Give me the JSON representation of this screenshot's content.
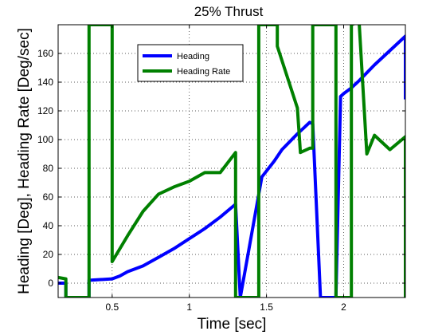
{
  "chart_data": {
    "type": "line",
    "title": "25% Thrust",
    "xlabel": "Time [sec]",
    "ylabel": "Heading [Deg], Heading Rate [Deg/sec]",
    "xlim": [
      0.15,
      2.4
    ],
    "ylim": [
      -10,
      180
    ],
    "xticks": [
      0.5,
      1,
      1.5,
      2
    ],
    "xtick_labels": [
      "0.5",
      "1",
      "1.5",
      "2"
    ],
    "yticks": [
      0,
      20,
      40,
      60,
      80,
      100,
      120,
      140,
      160
    ],
    "ytick_labels": [
      "0",
      "20",
      "40",
      "60",
      "80",
      "100",
      "120",
      "140",
      "160"
    ],
    "grid": true,
    "legend": "upper-center",
    "series": [
      {
        "name": "Heading",
        "color": "#0000ff",
        "x": [
          0.15,
          0.2,
          0.2,
          0.35,
          0.35,
          0.35,
          0.5,
          0.55,
          0.6,
          0.7,
          0.8,
          0.9,
          1.0,
          1.1,
          1.2,
          1.3,
          1.33,
          1.47,
          1.55,
          1.6,
          1.7,
          1.78,
          1.8,
          1.85,
          1.95,
          1.98,
          2.0,
          2.05,
          2.1,
          2.2,
          2.3,
          2.4,
          2.4
        ],
        "y": [
          0,
          0,
          -10,
          -10,
          -10,
          2,
          3,
          5,
          8,
          12,
          18,
          24,
          31,
          38,
          46,
          55,
          -10,
          74,
          85,
          93,
          104,
          112,
          111,
          -10,
          -10,
          130,
          132,
          136,
          141,
          152,
          162,
          172,
          128
        ]
      },
      {
        "name": "Heading Rate",
        "color": "#008000",
        "x": [
          0.15,
          0.2,
          0.2,
          0.35,
          0.35,
          0.5,
          0.5,
          0.6,
          0.7,
          0.8,
          0.9,
          1.0,
          1.1,
          1.2,
          1.3,
          1.3,
          1.45,
          1.45,
          1.57,
          1.57,
          1.7,
          1.72,
          1.78,
          1.8,
          1.8,
          1.95,
          1.95,
          2.05,
          2.05,
          2.1,
          2.15,
          2.2,
          2.3,
          2.4,
          2.4
        ],
        "y": [
          4,
          3,
          -10,
          -10,
          180,
          180,
          15,
          33,
          50,
          62,
          67,
          71,
          77,
          77,
          91,
          -10,
          -10,
          180,
          180,
          165,
          122,
          91,
          94,
          94,
          180,
          180,
          -10,
          -10,
          180,
          182,
          90,
          103,
          93,
          102,
          -10
        ]
      }
    ]
  }
}
